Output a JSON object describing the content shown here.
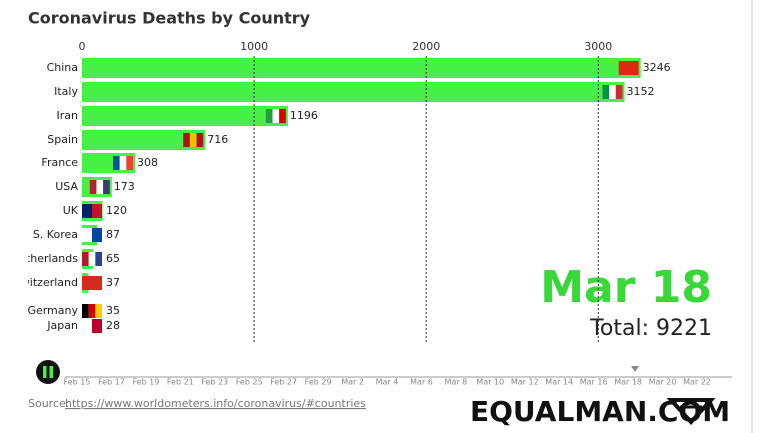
{
  "chart_data": {
    "type": "bar",
    "orientation": "horizontal",
    "title": "Coronavirus Deaths by Country",
    "categories": [
      "China",
      "Italy",
      "Iran",
      "Spain",
      "France",
      "USA",
      "UK",
      "S. Korea",
      "Netherlands",
      "Switzerland",
      "Germany",
      "Japan"
    ],
    "values": [
      3246,
      3152,
      1196,
      716,
      308,
      173,
      120,
      87,
      65,
      37,
      35,
      28
    ],
    "color": "#46f046",
    "xlim": [
      0,
      3800
    ],
    "xticks": [
      0,
      1000,
      2000,
      3000
    ],
    "grid": true,
    "date": "Mar 18",
    "total": "Total: 9221",
    "timeline": [
      "Feb 15",
      "Feb 17",
      "Feb 19",
      "Feb 21",
      "Feb 23",
      "Feb 25",
      "Feb 27",
      "Feb 29",
      "Mar 2",
      "Mar 4",
      "Mar 6",
      "Mar 8",
      "Mar 10",
      "Mar 12",
      "Mar 14",
      "Mar 16",
      "Mar 18",
      "Mar 20",
      "Mar 22"
    ],
    "source_label": "Source:",
    "source_link": "https://www.worldometers.info/coronavirus/#countries",
    "brand": "EQUALMAN.COM"
  }
}
